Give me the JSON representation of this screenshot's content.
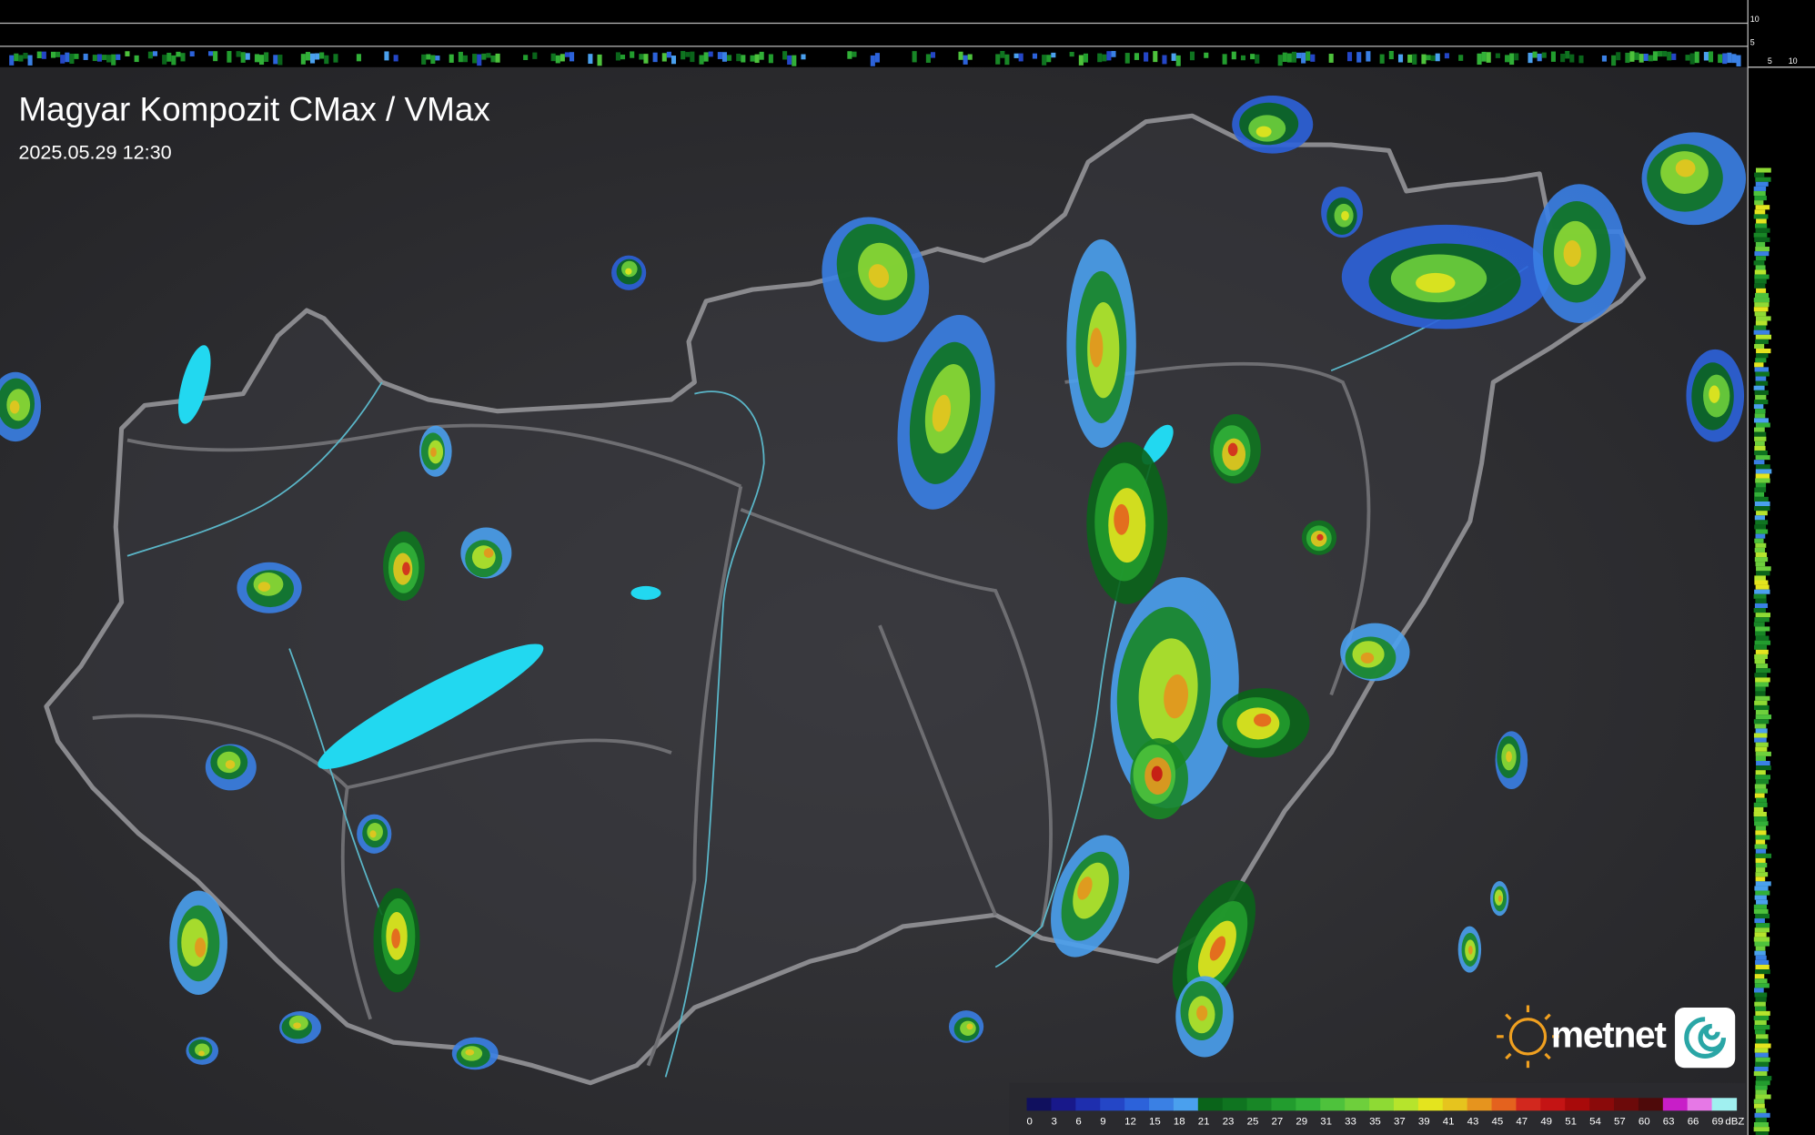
{
  "header": {
    "title": "Magyar Kompozit CMax / VMax",
    "timestamp": "2025.05.29 12:30"
  },
  "profile": {
    "top_labels": [
      10,
      5
    ],
    "side_labels": [
      5,
      10
    ]
  },
  "legend": {
    "unit": "dBZ",
    "items": [
      {
        "value": 0,
        "color": "#10105e"
      },
      {
        "value": 3,
        "color": "#18188a"
      },
      {
        "value": 6,
        "color": "#1e2eae"
      },
      {
        "value": 9,
        "color": "#2446c6"
      },
      {
        "value": 12,
        "color": "#2c62da"
      },
      {
        "value": 15,
        "color": "#3a80e4"
      },
      {
        "value": 18,
        "color": "#4aa0ee"
      },
      {
        "value": 21,
        "color": "#0a641a"
      },
      {
        "value": 23,
        "color": "#0f7420"
      },
      {
        "value": 25,
        "color": "#188626"
      },
      {
        "value": 27,
        "color": "#229c2e"
      },
      {
        "value": 29,
        "color": "#32b038"
      },
      {
        "value": 31,
        "color": "#4ec23c"
      },
      {
        "value": 33,
        "color": "#6ecf3c"
      },
      {
        "value": 35,
        "color": "#8eda34"
      },
      {
        "value": 37,
        "color": "#b6e42c"
      },
      {
        "value": 39,
        "color": "#e4e41e"
      },
      {
        "value": 41,
        "color": "#e6c41e"
      },
      {
        "value": 43,
        "color": "#e6941e"
      },
      {
        "value": 45,
        "color": "#e4621e"
      },
      {
        "value": 47,
        "color": "#d2281e"
      },
      {
        "value": 49,
        "color": "#c41414"
      },
      {
        "value": 51,
        "color": "#a80a0a"
      },
      {
        "value": 54,
        "color": "#8a0a0a"
      },
      {
        "value": 57,
        "color": "#6c0a0a"
      },
      {
        "value": 60,
        "color": "#4e0a0a"
      },
      {
        "value": 63,
        "color": "#c81ec8"
      },
      {
        "value": 66,
        "color": "#e678e6"
      },
      {
        "value": 69,
        "color": "#a0f0f0"
      }
    ]
  },
  "logo": {
    "text": "metnet"
  }
}
